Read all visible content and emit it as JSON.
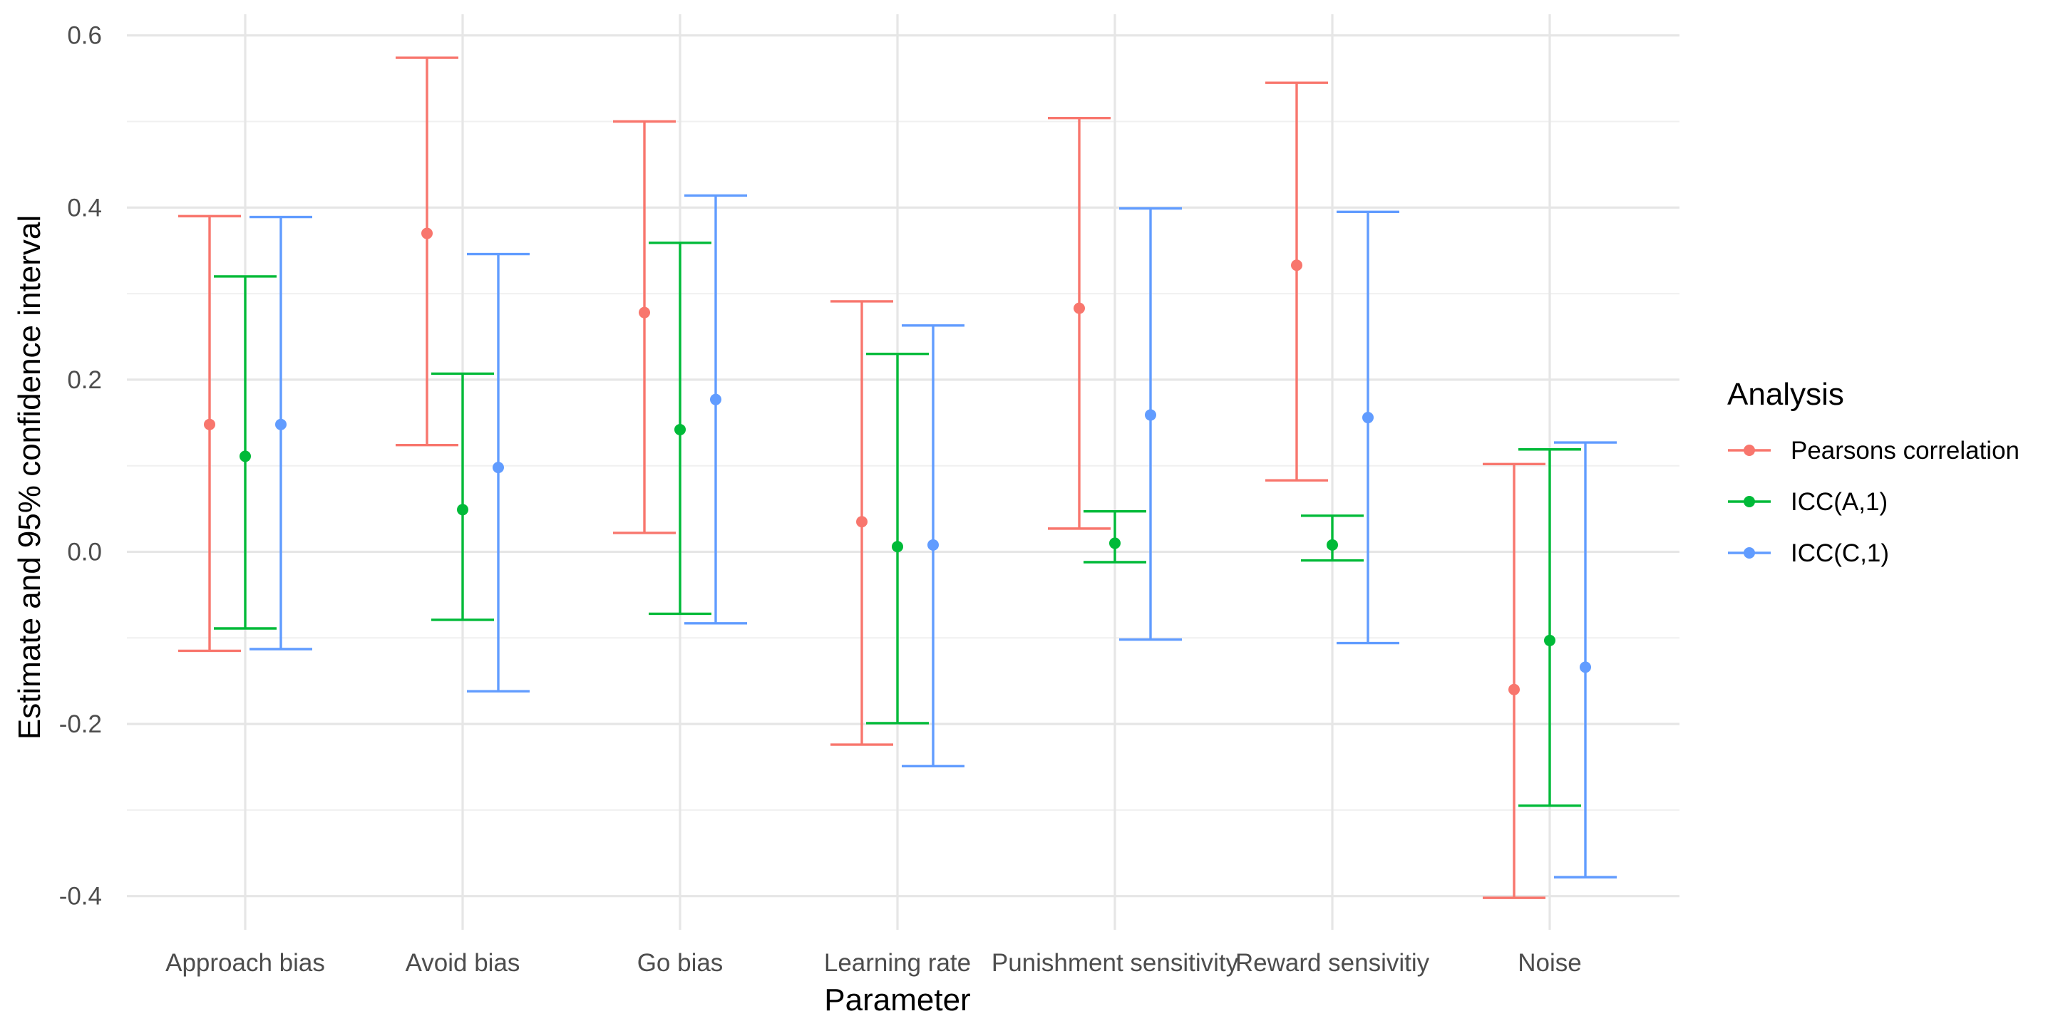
{
  "chart_data": {
    "type": "errorbar",
    "xlabel": "Parameter",
    "ylabel": "Estimate and 95% confidence interval",
    "ylim": [
      -0.445,
      0.625
    ],
    "y_ticks": [
      -0.4,
      -0.2,
      0.0,
      0.2,
      0.4,
      0.6
    ],
    "y_tick_labels": [
      "-0.4",
      "-0.2",
      "0.0",
      "0.2",
      "0.4",
      "0.6"
    ],
    "categories": [
      "Approach bias",
      "Avoid bias",
      "Go bias",
      "Learning rate",
      "Punishment sensitivity",
      "Reward sensivitiy",
      "Noise"
    ],
    "grid": true,
    "legend": {
      "title": "Analysis",
      "position": "right"
    },
    "series": [
      {
        "name": "Pearsons correlation",
        "color": "#F8766D",
        "estimate": [
          0.148,
          0.37,
          0.278,
          0.035,
          0.283,
          0.333,
          -0.16
        ],
        "lower": [
          -0.115,
          0.124,
          0.022,
          -0.224,
          0.027,
          0.083,
          -0.402
        ],
        "upper": [
          0.39,
          0.574,
          0.5,
          0.291,
          0.504,
          0.545,
          0.102
        ]
      },
      {
        "name": "ICC(A,1)",
        "color": "#00BA38",
        "estimate": [
          0.111,
          0.049,
          0.142,
          0.006,
          0.01,
          0.008,
          -0.103
        ],
        "lower": [
          -0.089,
          -0.079,
          -0.072,
          -0.199,
          -0.012,
          -0.01,
          -0.295
        ],
        "upper": [
          0.32,
          0.207,
          0.359,
          0.23,
          0.047,
          0.042,
          0.119
        ]
      },
      {
        "name": "ICC(C,1)",
        "color": "#619CFF",
        "estimate": [
          0.148,
          0.098,
          0.177,
          0.008,
          0.159,
          0.156,
          -0.134
        ],
        "lower": [
          -0.113,
          -0.162,
          -0.083,
          -0.249,
          -0.102,
          -0.106,
          -0.378
        ],
        "upper": [
          0.389,
          0.346,
          0.414,
          0.263,
          0.399,
          0.395,
          0.127
        ]
      }
    ]
  }
}
